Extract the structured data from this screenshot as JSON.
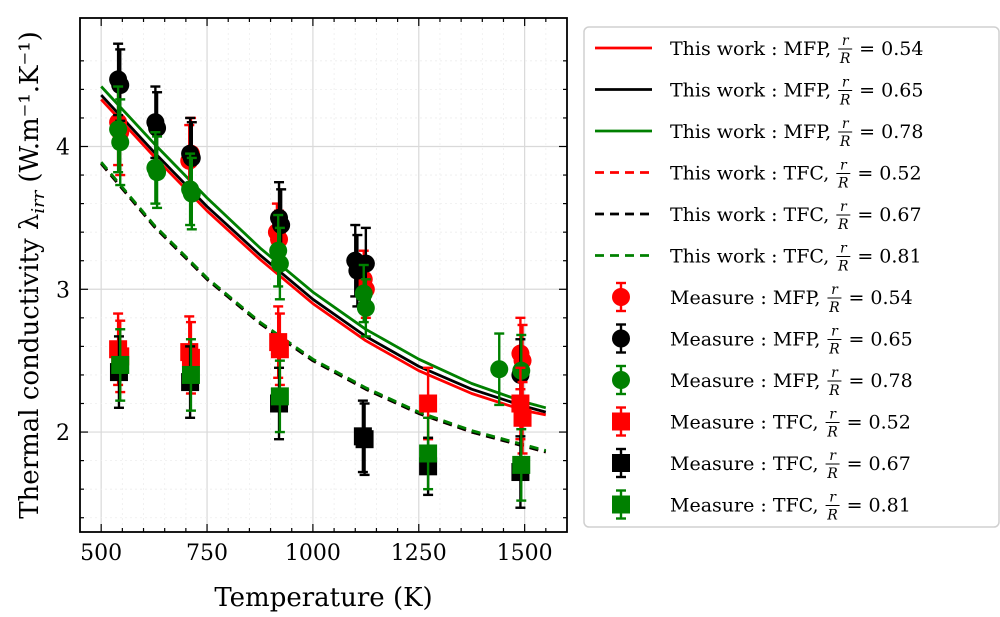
{
  "chart_data": {
    "type": "line",
    "title": "",
    "xlabel": "Temperature (K)",
    "ylabel": "Thermal conductivity λ",
    "ylabel_sub": "irr",
    "ylabel_units": "(W.m⁻¹.K⁻¹)",
    "xlim": [
      450,
      1600
    ],
    "ylim": [
      1.3,
      4.9
    ],
    "xticks": [
      500,
      750,
      1000,
      1250,
      1500
    ],
    "yticks": [
      2,
      3,
      4
    ],
    "grid": true,
    "legend_position": "outside-right",
    "legend_frac_num": "r",
    "legend_frac_den": "R",
    "legend_eq": "=",
    "curves": [
      {
        "name": "This work : MFP,",
        "ratio": "0.54",
        "color": "#ff0000",
        "dash": "solid",
        "x": [
          500,
          625,
          750,
          875,
          1000,
          1125,
          1250,
          1375,
          1500,
          1550
        ],
        "y": [
          4.33,
          3.93,
          3.55,
          3.21,
          2.9,
          2.64,
          2.43,
          2.27,
          2.15,
          2.12
        ]
      },
      {
        "name": "This work : MFP,",
        "ratio": "0.65",
        "color": "#000000",
        "dash": "solid",
        "x": [
          500,
          625,
          750,
          875,
          1000,
          1125,
          1250,
          1375,
          1500,
          1550
        ],
        "y": [
          4.36,
          3.96,
          3.58,
          3.24,
          2.93,
          2.67,
          2.46,
          2.3,
          2.18,
          2.14
        ]
      },
      {
        "name": "This work : MFP,",
        "ratio": "0.78",
        "color": "#008000",
        "dash": "solid",
        "x": [
          500,
          625,
          750,
          875,
          1000,
          1125,
          1250,
          1375,
          1500,
          1550
        ],
        "y": [
          4.42,
          4.02,
          3.64,
          3.29,
          2.98,
          2.72,
          2.51,
          2.34,
          2.21,
          2.17
        ]
      },
      {
        "name": "This work : TFC,",
        "ratio": "0.52",
        "color": "#ff0000",
        "dash": "dashed",
        "x": [
          500,
          625,
          750,
          875,
          1000,
          1125,
          1250,
          1375,
          1500,
          1550
        ],
        "y": [
          3.88,
          3.44,
          3.07,
          2.76,
          2.5,
          2.3,
          2.13,
          2.0,
          1.9,
          1.86
        ]
      },
      {
        "name": "This work : TFC,",
        "ratio": "0.67",
        "color": "#000000",
        "dash": "dashed",
        "x": [
          500,
          625,
          750,
          875,
          1000,
          1125,
          1250,
          1375,
          1500,
          1550
        ],
        "y": [
          3.88,
          3.44,
          3.07,
          2.76,
          2.5,
          2.3,
          2.13,
          2.0,
          1.9,
          1.86
        ]
      },
      {
        "name": "This work : TFC,",
        "ratio": "0.81",
        "color": "#008000",
        "dash": "dashed",
        "x": [
          500,
          625,
          750,
          875,
          1000,
          1125,
          1250,
          1375,
          1500,
          1550
        ],
        "y": [
          3.89,
          3.45,
          3.08,
          2.77,
          2.51,
          2.31,
          2.14,
          2.01,
          1.91,
          1.87
        ]
      }
    ],
    "measurements": [
      {
        "name": "Measure : MFP,",
        "ratio": "0.54",
        "color": "#ff0000",
        "marker": "circle",
        "points": [
          {
            "x": 540,
            "y": 4.17,
            "err": 0.3
          },
          {
            "x": 545,
            "y": 4.1,
            "err": 0.3
          },
          {
            "x": 708,
            "y": 3.9,
            "err": 0.25
          },
          {
            "x": 712,
            "y": 3.95,
            "err": 0.25
          },
          {
            "x": 915,
            "y": 3.4,
            "err": 0.2
          },
          {
            "x": 920,
            "y": 3.35,
            "err": 0.2
          },
          {
            "x": 1120,
            "y": 3.07,
            "err": 0.2
          },
          {
            "x": 1125,
            "y": 3.0,
            "err": 0.2
          },
          {
            "x": 1490,
            "y": 2.55,
            "err": 0.25
          },
          {
            "x": 1495,
            "y": 2.5,
            "err": 0.25
          }
        ]
      },
      {
        "name": "Measure : MFP,",
        "ratio": "0.65",
        "color": "#000000",
        "marker": "circle",
        "points": [
          {
            "x": 540,
            "y": 4.47,
            "err": 0.25
          },
          {
            "x": 545,
            "y": 4.43,
            "err": 0.25
          },
          {
            "x": 628,
            "y": 4.17,
            "err": 0.25
          },
          {
            "x": 632,
            "y": 4.13,
            "err": 0.25
          },
          {
            "x": 710,
            "y": 3.95,
            "err": 0.25
          },
          {
            "x": 714,
            "y": 3.92,
            "err": 0.25
          },
          {
            "x": 920,
            "y": 3.5,
            "err": 0.25
          },
          {
            "x": 925,
            "y": 3.45,
            "err": 0.25
          },
          {
            "x": 1100,
            "y": 3.2,
            "err": 0.25
          },
          {
            "x": 1105,
            "y": 3.13,
            "err": 0.25
          },
          {
            "x": 1125,
            "y": 3.18,
            "err": 0.25
          },
          {
            "x": 1490,
            "y": 2.4,
            "err": 0.25
          }
        ]
      },
      {
        "name": "Measure : MFP,",
        "ratio": "0.78",
        "color": "#008000",
        "marker": "circle",
        "points": [
          {
            "x": 540,
            "y": 4.12,
            "err": 0.3
          },
          {
            "x": 545,
            "y": 4.03,
            "err": 0.3
          },
          {
            "x": 628,
            "y": 3.85,
            "err": 0.25
          },
          {
            "x": 632,
            "y": 3.82,
            "err": 0.25
          },
          {
            "x": 710,
            "y": 3.7,
            "err": 0.25
          },
          {
            "x": 714,
            "y": 3.67,
            "err": 0.25
          },
          {
            "x": 918,
            "y": 3.27,
            "err": 0.25
          },
          {
            "x": 922,
            "y": 3.18,
            "err": 0.25
          },
          {
            "x": 1120,
            "y": 2.97,
            "err": 0.2
          },
          {
            "x": 1125,
            "y": 2.87,
            "err": 0.2
          },
          {
            "x": 1440,
            "y": 2.44,
            "err": 0.25
          },
          {
            "x": 1492,
            "y": 2.43,
            "err": 0.25
          }
        ]
      },
      {
        "name": "Measure : TFC,",
        "ratio": "0.52",
        "color": "#ff0000",
        "marker": "square",
        "points": [
          {
            "x": 540,
            "y": 2.58,
            "err": 0.25
          },
          {
            "x": 545,
            "y": 2.53,
            "err": 0.25
          },
          {
            "x": 708,
            "y": 2.56,
            "err": 0.25
          },
          {
            "x": 712,
            "y": 2.52,
            "err": 0.25
          },
          {
            "x": 918,
            "y": 2.63,
            "err": 0.25
          },
          {
            "x": 922,
            "y": 2.58,
            "err": 0.25
          },
          {
            "x": 1272,
            "y": 2.2,
            "err": 0.25
          },
          {
            "x": 1490,
            "y": 2.2,
            "err": 0.25
          },
          {
            "x": 1495,
            "y": 2.1,
            "err": 0.25
          }
        ]
      },
      {
        "name": "Measure : TFC,",
        "ratio": "0.67",
        "color": "#000000",
        "marker": "square",
        "points": [
          {
            "x": 542,
            "y": 2.42,
            "err": 0.25
          },
          {
            "x": 710,
            "y": 2.35,
            "err": 0.25
          },
          {
            "x": 920,
            "y": 2.2,
            "err": 0.25
          },
          {
            "x": 1118,
            "y": 1.97,
            "err": 0.25
          },
          {
            "x": 1122,
            "y": 1.95,
            "err": 0.25
          },
          {
            "x": 1272,
            "y": 1.76,
            "err": 0.2
          },
          {
            "x": 1490,
            "y": 1.72,
            "err": 0.25
          }
        ]
      },
      {
        "name": "Measure : TFC,",
        "ratio": "0.81",
        "color": "#008000",
        "marker": "square",
        "points": [
          {
            "x": 545,
            "y": 2.47,
            "err": 0.25
          },
          {
            "x": 712,
            "y": 2.4,
            "err": 0.25
          },
          {
            "x": 922,
            "y": 2.25,
            "err": 0.25
          },
          {
            "x": 1272,
            "y": 1.85,
            "err": 0.25
          },
          {
            "x": 1492,
            "y": 1.77,
            "err": 0.25
          }
        ]
      }
    ]
  }
}
